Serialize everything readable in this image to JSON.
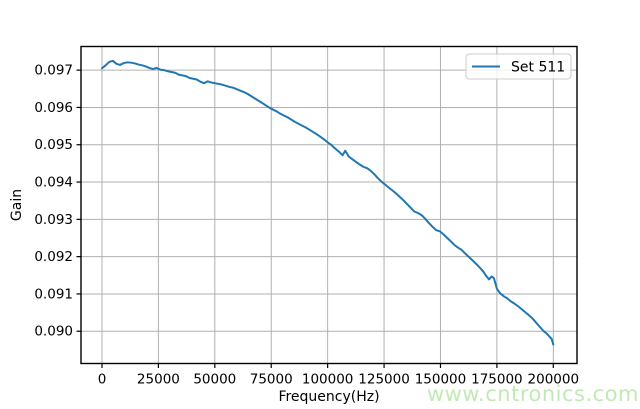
{
  "figure": {
    "background": "#ffffff",
    "watermark": {
      "text": "www.cntronics.com",
      "color": "#b7e6a8"
    }
  },
  "style": {
    "line_color": "#1f77b4",
    "grid_color": "#b0b0b0",
    "spine_color": "#000000",
    "text_color": "#000000",
    "legend_border": "#cccccc",
    "legend_bg": "rgba(255,255,255,0.8)"
  },
  "chart_data": {
    "type": "line",
    "title": "",
    "xlabel": "Frequency(Hz)",
    "ylabel": "Gain",
    "grid": true,
    "xlim": [
      -9300,
      210500
    ],
    "ylim": [
      0.089135,
      0.097634
    ],
    "x_ticks": [
      0,
      25000,
      50000,
      75000,
      100000,
      125000,
      150000,
      175000,
      200000
    ],
    "x_tick_labels": [
      "0",
      "25000",
      "50000",
      "75000",
      "100000",
      "125000",
      "150000",
      "175000",
      "200000"
    ],
    "y_ticks": [
      0.09,
      0.091,
      0.092,
      0.093,
      0.094,
      0.095,
      0.096,
      0.097
    ],
    "y_tick_labels": [
      "0.090",
      "0.091",
      "0.092",
      "0.093",
      "0.094",
      "0.095",
      "0.096",
      "0.097"
    ],
    "legend": {
      "position": "upper right",
      "entries": [
        {
          "label": "Set 511",
          "color": "#1f77b4"
        }
      ]
    },
    "series": [
      {
        "name": "Set 511",
        "color": "#1f77b4",
        "x": [
          0,
          1600,
          3200,
          4800,
          6400,
          8000,
          9700,
          11300,
          13000,
          14600,
          16200,
          17800,
          19400,
          21000,
          22600,
          24200,
          26000,
          27600,
          29200,
          30800,
          32400,
          34000,
          35600,
          37200,
          38800,
          40400,
          42000,
          43600,
          45200,
          46800,
          48400,
          50000,
          51700,
          53300,
          54900,
          56500,
          58100,
          59700,
          61300,
          63000,
          64600,
          66200,
          67800,
          69400,
          71000,
          72700,
          74300,
          75900,
          77500,
          79100,
          80700,
          82400,
          84000,
          85600,
          87200,
          88800,
          90400,
          92000,
          93600,
          95200,
          96900,
          98500,
          100100,
          101700,
          103300,
          104900,
          106600,
          107800,
          109400,
          111000,
          112600,
          114200,
          115800,
          117500,
          119100,
          120700,
          122300,
          123900,
          125500,
          127100,
          128800,
          130400,
          132000,
          133600,
          135200,
          136800,
          138400,
          140000,
          141700,
          143300,
          144900,
          146500,
          148100,
          149700,
          151300,
          153000,
          154600,
          156200,
          157800,
          159400,
          161000,
          162600,
          164200,
          165900,
          167500,
          169100,
          170300,
          171500,
          172700,
          173700,
          175000,
          176400,
          178000,
          179600,
          181200,
          182800,
          184400,
          186000,
          187600,
          189200,
          190800,
          192400,
          194000,
          195600,
          197200,
          198400,
          199300,
          200000
        ],
        "y": [
          0.09705,
          0.09713,
          0.09722,
          0.09725,
          0.09717,
          0.09714,
          0.09719,
          0.09721,
          0.0972,
          0.09718,
          0.09715,
          0.09713,
          0.0971,
          0.09706,
          0.09703,
          0.09706,
          0.09701,
          0.097,
          0.09697,
          0.09695,
          0.09693,
          0.09688,
          0.09686,
          0.09684,
          0.09679,
          0.09677,
          0.09675,
          0.09669,
          0.09665,
          0.0967,
          0.09667,
          0.09665,
          0.09663,
          0.09661,
          0.09658,
          0.09655,
          0.09653,
          0.09649,
          0.09645,
          0.09641,
          0.09636,
          0.0963,
          0.09624,
          0.09618,
          0.09612,
          0.09605,
          0.09599,
          0.09594,
          0.09589,
          0.09583,
          0.09578,
          0.09573,
          0.09567,
          0.09561,
          0.09556,
          0.09551,
          0.09546,
          0.0954,
          0.09534,
          0.09528,
          0.09521,
          0.09514,
          0.09506,
          0.09499,
          0.0949,
          0.09482,
          0.09472,
          0.09484,
          0.09468,
          0.09461,
          0.09454,
          0.09447,
          0.09441,
          0.09437,
          0.0943,
          0.09421,
          0.0941,
          0.09401,
          0.09393,
          0.09385,
          0.09377,
          0.09369,
          0.0936,
          0.09351,
          0.09341,
          0.09331,
          0.09321,
          0.09317,
          0.09311,
          0.09301,
          0.0929,
          0.0928,
          0.09271,
          0.09268,
          0.0926,
          0.0925,
          0.09241,
          0.09231,
          0.09224,
          0.09218,
          0.09208,
          0.09199,
          0.0919,
          0.0918,
          0.0917,
          0.09159,
          0.09148,
          0.09139,
          0.09147,
          0.09142,
          0.09114,
          0.09102,
          0.09094,
          0.09088,
          0.0908,
          0.09074,
          0.09067,
          0.09059,
          0.09051,
          0.09043,
          0.09034,
          0.09023,
          0.09012,
          0.09001,
          0.08993,
          0.08985,
          0.08979,
          0.08964
        ]
      }
    ]
  }
}
